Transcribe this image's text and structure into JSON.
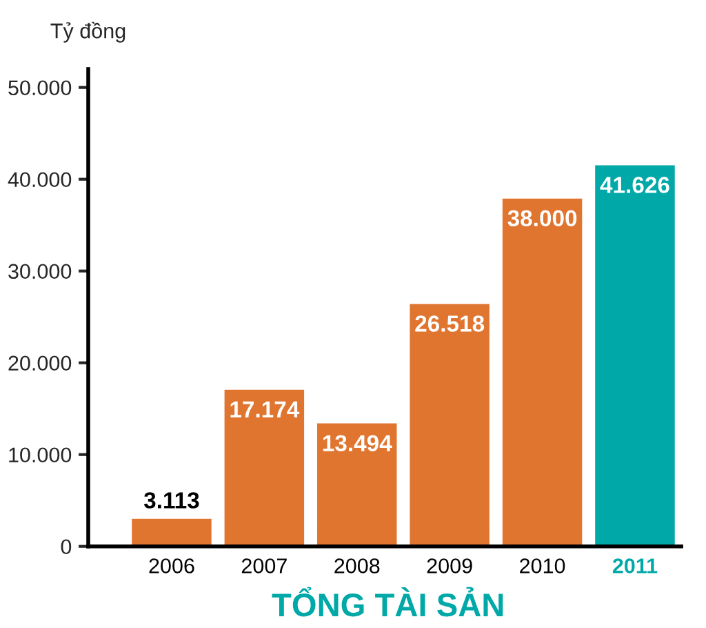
{
  "chart_data": {
    "type": "bar",
    "title": "TỔNG TÀI SẢN",
    "ylabel": "Tỷ đồng",
    "categories": [
      "2006",
      "2007",
      "2008",
      "2009",
      "2010",
      "2011"
    ],
    "values": [
      3113,
      17174,
      13494,
      26518,
      38000,
      41626
    ],
    "colors": [
      "#e07530",
      "#e07530",
      "#e07530",
      "#e07530",
      "#e07530",
      "#00a8a8"
    ],
    "value_labels": [
      "3.113",
      "17.174",
      "13.494",
      "26.518",
      "38.000",
      "41.626"
    ],
    "ylim": [
      0,
      52000
    ],
    "yticks": [
      {
        "value": 0,
        "label": "0"
      },
      {
        "value": 10000,
        "label": "10.000"
      },
      {
        "value": 20000,
        "label": "20.000"
      },
      {
        "value": 30000,
        "label": "30.000"
      },
      {
        "value": 40000,
        "label": "40.000"
      },
      {
        "value": 50000,
        "label": "50.000"
      }
    ],
    "grid": false,
    "legend": false
  }
}
